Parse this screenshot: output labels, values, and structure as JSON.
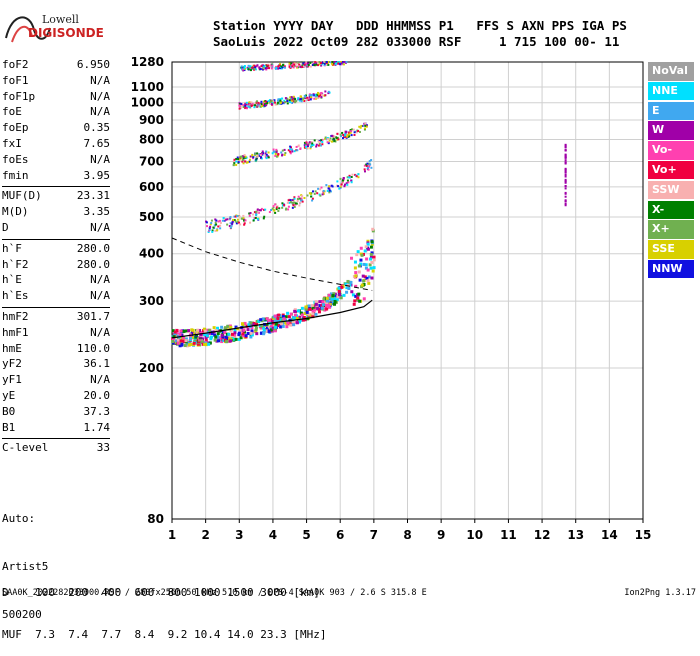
{
  "logo": {
    "line1": "Lowell",
    "line2": "DIGISONDE"
  },
  "header": {
    "line1": "Station YYYY DAY   DDD HHMMSS P1   FFS S AXN PPS IGA PS",
    "line2": "SaoLuis 2022 Oct09 282 033000 RSF     1 715 100 00- 11"
  },
  "params": [
    [
      [
        "foF2",
        "6.950"
      ],
      [
        "foF1",
        "N/A"
      ],
      [
        "foF1p",
        "N/A"
      ],
      [
        "foE",
        "N/A"
      ],
      [
        "foEp",
        "0.35"
      ],
      [
        "fxI",
        "7.65"
      ],
      [
        "foEs",
        "N/A"
      ],
      [
        "fmin",
        "3.95"
      ]
    ],
    [
      [
        "MUF(D)",
        "23.31"
      ],
      [
        "M(D)",
        "3.35"
      ],
      [
        "D",
        "N/A"
      ]
    ],
    [
      [
        "h`F",
        "280.0"
      ],
      [
        "h`F2",
        "280.0"
      ],
      [
        "h`E",
        "N/A"
      ],
      [
        "h`Es",
        "N/A"
      ]
    ],
    [
      [
        "hmF2",
        "301.7"
      ],
      [
        "hmF1",
        "N/A"
      ],
      [
        "hmE",
        "110.0"
      ],
      [
        "yF2",
        "36.1"
      ],
      [
        "yF1",
        "N/A"
      ],
      [
        "yE",
        "20.0"
      ],
      [
        "B0",
        "37.3"
      ],
      [
        "B1",
        "1.74"
      ]
    ],
    [
      [
        "C-level",
        "33"
      ]
    ]
  ],
  "auto": {
    "label": "Auto:",
    "artist": "Artist5",
    "code": "500200"
  },
  "legend": [
    {
      "label": "NoVal",
      "color": "#a0a0a0"
    },
    {
      "label": "NNE",
      "color": "#00e0ff"
    },
    {
      "label": "E",
      "color": "#40a8f0"
    },
    {
      "label": "W",
      "color": "#a000a8"
    },
    {
      "label": "Vo-",
      "color": "#ff40b0"
    },
    {
      "label": "Vo+",
      "color": "#f00040"
    },
    {
      "label": "SSW",
      "color": "#f8b0b0"
    },
    {
      "label": "X-",
      "color": "#008000"
    },
    {
      "label": "X+",
      "color": "#70b050"
    },
    {
      "label": "SSE",
      "color": "#d8d000"
    },
    {
      "label": "NNW",
      "color": "#1010e0"
    }
  ],
  "muf_table": {
    "line1": "D    100  200  400  600  800 1000 1500 3000 [km]",
    "line2": "MUF  7.3  7.4  7.7  8.4  9.2 10.4 14.0 23.3 [MHz]"
  },
  "footer": {
    "left": "SAA0K_2022282033000.RSF / 280fx256h 50 kHz 5.0 km / DPS-4 SAA0K 903 / 2.6 S 315.8 E",
    "right": "Ion2Png 1.3.17"
  },
  "chart_data": {
    "type": "scatter",
    "title": "",
    "xlabel": "",
    "ylabel": "",
    "xlim": [
      1,
      15
    ],
    "ylim": [
      80,
      1280
    ],
    "y_scale": "log",
    "x_ticks": [
      1,
      2,
      3,
      4,
      5,
      6,
      7,
      8,
      9,
      10,
      11,
      12,
      13,
      14,
      15
    ],
    "y_ticks": [
      80,
      200,
      300,
      400,
      500,
      600,
      700,
      800,
      900,
      1000,
      1100,
      1280
    ],
    "grid": true,
    "traces": [
      {
        "name": "F2 O-trace (1st hop)",
        "x": [
          1.0,
          2.0,
          3.0,
          4.0,
          5.0,
          5.8,
          6.3,
          6.7,
          6.9,
          7.0
        ],
        "y": [
          240,
          243,
          250,
          262,
          280,
          305,
          335,
          365,
          395,
          430
        ]
      },
      {
        "name": "F2 2nd hop",
        "x": [
          2.0,
          3.0,
          4.0,
          5.0,
          5.8,
          6.5,
          7.0
        ],
        "y": [
          470,
          490,
          520,
          560,
          600,
          640,
          700
        ]
      },
      {
        "name": "F2 3rd hop",
        "x": [
          2.8,
          3.5,
          4.5,
          5.5,
          6.3,
          6.8
        ],
        "y": [
          700,
          720,
          750,
          790,
          830,
          870
        ]
      },
      {
        "name": "F2 4th hop",
        "x": [
          3.0,
          4.0,
          5.0,
          5.7
        ],
        "y": [
          980,
          1000,
          1030,
          1060
        ]
      },
      {
        "name": "F2 5th hop",
        "x": [
          3.0,
          4.5,
          5.5,
          6.2
        ],
        "y": [
          1230,
          1250,
          1270,
          1280
        ]
      },
      {
        "name": "Sporadic (f ~12.7)",
        "x": [
          12.7,
          12.7
        ],
        "y": [
          530,
          790
        ]
      }
    ],
    "profile": {
      "name": "Electron density profile",
      "x": [
        1.0,
        2.0,
        3.0,
        4.0,
        5.0,
        6.0,
        6.7,
        6.95
      ],
      "y": [
        240,
        247,
        255,
        263,
        270,
        280,
        290,
        301.7
      ]
    },
    "profile_extrapolated": {
      "name": "Topside extrapolation (dashed)",
      "x": [
        1.0,
        2.0,
        3.0,
        4.0,
        5.0,
        6.0,
        6.95
      ],
      "y": [
        440,
        405,
        380,
        360,
        345,
        332,
        320
      ]
    }
  }
}
